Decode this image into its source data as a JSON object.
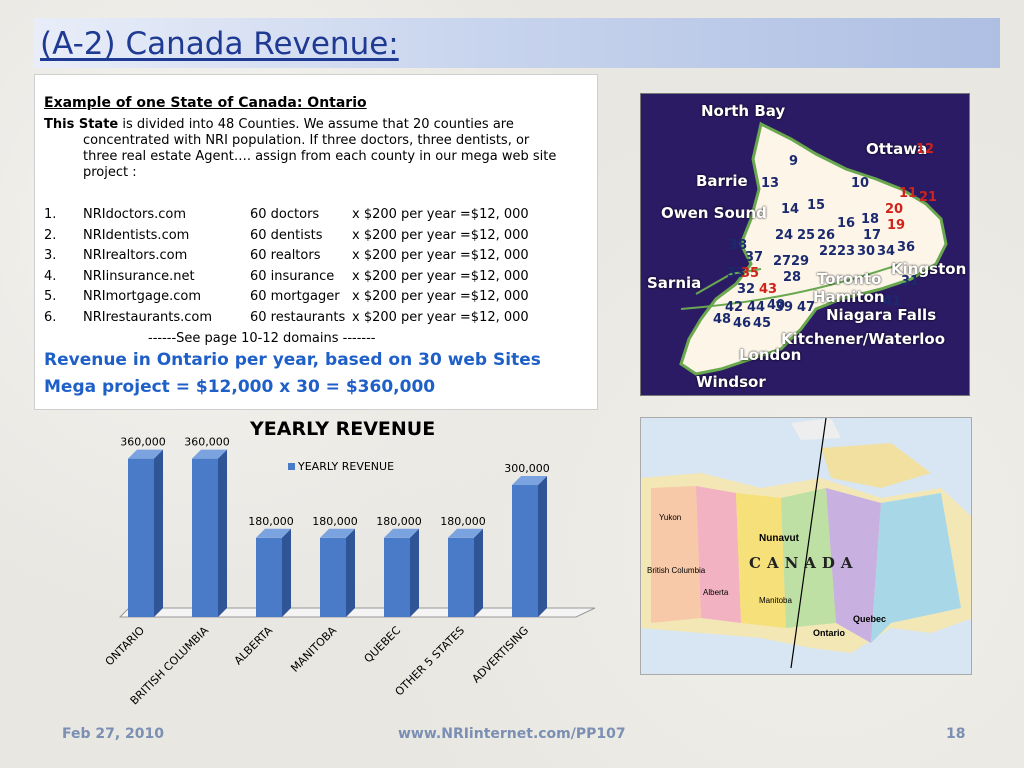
{
  "slide": {
    "title": "(A-2) Canada Revenue:",
    "subtitle": "Example of one State of Canada:  Ontario",
    "intro_bold": "This State",
    "intro_text": "is divided into  48 Counties. We assume that 20 counties are",
    "intro_line2": "concentrated with NRI population. If  three doctors, three dentists, or",
    "intro_line3": "three real estate Agent…. assign   from each county in our mega web site",
    "intro_line4": "project :",
    "list": [
      {
        "num": "1.",
        "site": "NRIdoctors.com",
        "count": "60 doctors",
        "calc": "x $200 per year =$12, 000"
      },
      {
        "num": "2.",
        "site": "NRIdentists.com",
        "count": "60 dentists",
        "calc": "x $200 per year =$12, 000"
      },
      {
        "num": "3.",
        "site": "NRIrealtors.com",
        "count": "60 realtors",
        "calc": "x $200 per year =$12, 000"
      },
      {
        "num": "4.",
        "site": "NRIinsurance.net",
        "count": "60 insurance",
        "calc": "x $200 per year =$12, 000"
      },
      {
        "num": "5.",
        "site": "NRImortgage.com",
        "count": "60 mortgager",
        "calc": "x $200 per year =$12, 000"
      },
      {
        "num": "6.",
        "site": "NRIrestaurants.com",
        "count": "60 restaurants",
        "calc": "x $200 per year =$12, 000"
      }
    ],
    "see_pages": "------See page 10-12 domains -------",
    "revenue_line1": "Revenue in Ontario per year, based on 30 web Sites",
    "revenue_line2": "Mega project = $12,000 x  30 = $360,000"
  },
  "ontario_map": {
    "labels": [
      "North Bay",
      "Ottawa",
      "Barrie",
      "Owen Sound",
      "Kingston",
      "Sarnia",
      "Toronto",
      "Hamiton",
      "Niagara Falls",
      "London",
      "Kitchener/Waterloo",
      "Windsor"
    ],
    "numbers": [
      "9",
      "12",
      "13",
      "10",
      "11",
      "21",
      "14",
      "15",
      "20",
      "16",
      "18",
      "19",
      "24",
      "25",
      "26",
      "17",
      "22",
      "23",
      "30",
      "34",
      "36",
      "37",
      "38",
      "27",
      "29",
      "33",
      "35",
      "28",
      "31",
      "32",
      "43",
      "40",
      "41",
      "42",
      "44",
      "39",
      "47",
      "48",
      "46",
      "45"
    ]
  },
  "canada_map": {
    "country": "CANADA",
    "regions": [
      "Yukon",
      "Alberta",
      "Manitoba",
      "Ontario",
      "Quebec",
      "Nunavut",
      "British Columbia"
    ]
  },
  "chart_data": {
    "type": "bar",
    "title": "YEARLY REVENUE",
    "legend": "YEARLY REVENUE",
    "categories": [
      "ONTARIO",
      "BRITISH COLUMBIA",
      "ALBERTA",
      "MANITOBA",
      "QUEBEC",
      "OTHER 5 STATES",
      "ADVERTISING"
    ],
    "values": [
      360000,
      360000,
      180000,
      180000,
      180000,
      180000,
      300000
    ],
    "value_labels": [
      "360,000",
      "360,000",
      "180,000",
      "180,000",
      "180,000",
      "180,000",
      "300,000"
    ],
    "ylim": [
      0,
      400000
    ],
    "bar_color": "#4a7bc8"
  },
  "footer": {
    "date": "Feb 27, 2010",
    "url": "www.NRIinternet.com/PP107",
    "page": "18"
  }
}
